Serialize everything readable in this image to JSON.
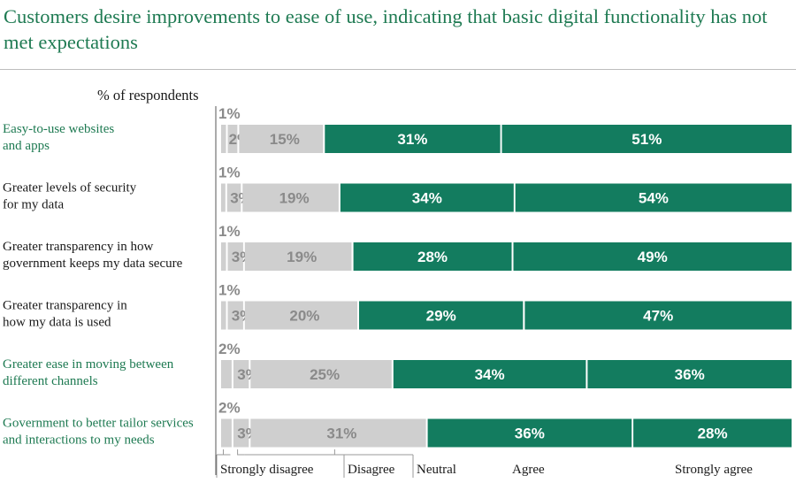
{
  "title": "Customers desire improvements to ease of use, indicating that basic digital functionality has not met expectations",
  "colors": {
    "title": "#1e7a52",
    "disagree_fill": "#cfcfcf",
    "agree_fill": "#137c5f",
    "disagree_text": "#8a8a8a",
    "agree_text": "#ffffff",
    "green_category": "#1e7a52",
    "dark_category": "#1a1a1a"
  },
  "chart_data": {
    "type": "bar",
    "orientation": "horizontal-stacked",
    "unit_label": "% of respondents",
    "categories": [
      "Easy-to-use websites and apps",
      "Greater levels of security for my data",
      "Greater transparency in how government keeps my data secure",
      "Greater transparency in how my data is used",
      "Greater ease in moving between different channels",
      "Government to better tailor services and interactions to my needs"
    ],
    "category_lines": [
      [
        "Easy-to-use websites",
        "and apps"
      ],
      [
        "Greater levels of security",
        "for my data"
      ],
      [
        "Greater transparency in how",
        "government keeps my data secure"
      ],
      [
        "Greater transparency in",
        "how my data is used"
      ],
      [
        "Greater ease in moving between",
        "different channels"
      ],
      [
        "Government to better tailor services",
        "and interactions to my needs"
      ]
    ],
    "category_highlight": [
      true,
      false,
      false,
      false,
      true,
      true
    ],
    "series": [
      {
        "name": "Strongly disagree",
        "values": [
          1,
          1,
          1,
          1,
          2,
          2
        ]
      },
      {
        "name": "Disagree",
        "values": [
          2,
          3,
          3,
          3,
          3,
          3
        ]
      },
      {
        "name": "Neutral",
        "values": [
          15,
          19,
          19,
          20,
          25,
          31
        ]
      },
      {
        "name": "Agree",
        "values": [
          31,
          34,
          28,
          29,
          34,
          36
        ]
      },
      {
        "name": "Strongly agree",
        "values": [
          51,
          54,
          49,
          47,
          36,
          28
        ]
      }
    ],
    "value_suffix": "%",
    "legend_position": "bottom",
    "grid": false
  }
}
